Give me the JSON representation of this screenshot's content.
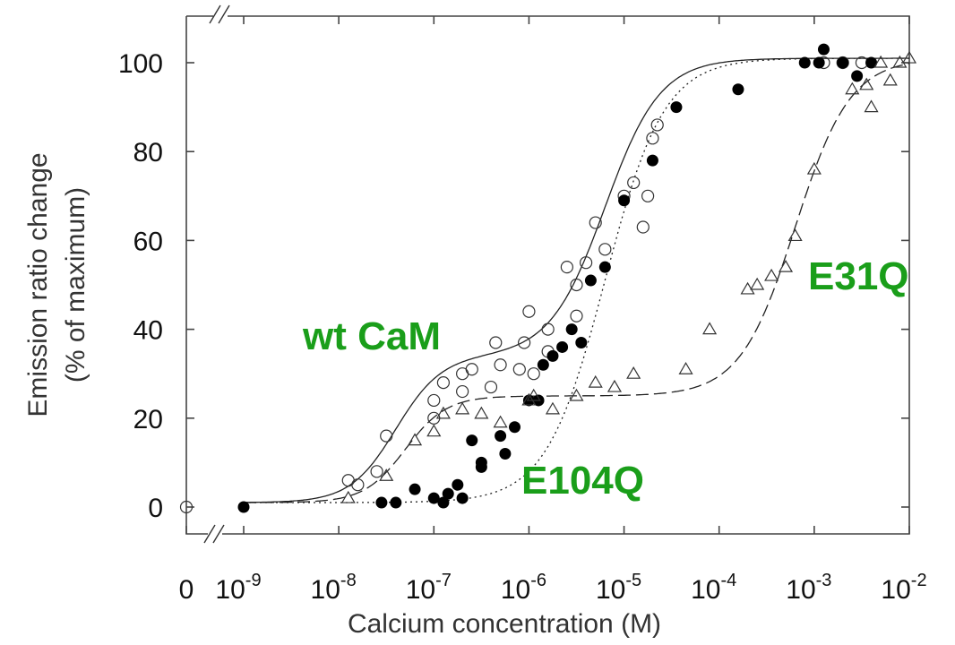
{
  "chart_data": {
    "type": "scatter",
    "title": "",
    "xlabel": "Calcium concentration (M)",
    "ylabel": "Emission ratio change",
    "ylabel_sub": "(% of maximum)",
    "x_scale": "log",
    "x_range_log10": [
      -9,
      -2
    ],
    "ylim": [
      0,
      100
    ],
    "grid": false,
    "x_zero_label": "0",
    "x_ticks": [
      {
        "base": "10",
        "exp": "-9",
        "log10": -9
      },
      {
        "base": "10",
        "exp": "-8",
        "log10": -8
      },
      {
        "base": "10",
        "exp": "-7",
        "log10": -7
      },
      {
        "base": "10",
        "exp": "-6",
        "log10": -6
      },
      {
        "base": "10",
        "exp": "-5",
        "log10": -5
      },
      {
        "base": "10",
        "exp": "-4",
        "log10": -4
      },
      {
        "base": "10",
        "exp": "-3",
        "log10": -3
      },
      {
        "base": "10",
        "exp": "-2",
        "log10": -2
      }
    ],
    "y_ticks": [
      "0",
      "20",
      "40",
      "60",
      "80",
      "100"
    ],
    "annotations": [
      {
        "text": "wt CaM",
        "color": "#1a9e1a"
      },
      {
        "text": "E104Q",
        "color": "#1a9e1a"
      },
      {
        "text": "E31Q",
        "color": "#1a9e1a"
      }
    ],
    "series": [
      {
        "marker": "open-circle",
        "points": [
          [
            -7.9,
            6
          ],
          [
            -7.8,
            5
          ],
          [
            -7.6,
            8
          ],
          [
            -7.5,
            16
          ],
          [
            -7.0,
            24
          ],
          [
            -7.0,
            20
          ],
          [
            -6.9,
            28
          ],
          [
            -6.7,
            30
          ],
          [
            -6.7,
            26
          ],
          [
            -6.6,
            31
          ],
          [
            -6.4,
            27
          ],
          [
            -6.35,
            37
          ],
          [
            -6.3,
            32
          ],
          [
            -6.1,
            31
          ],
          [
            -6.05,
            37
          ],
          [
            -6.0,
            44
          ],
          [
            -5.95,
            30
          ],
          [
            -5.8,
            35
          ],
          [
            -5.8,
            40
          ],
          [
            -5.6,
            54
          ],
          [
            -5.5,
            43
          ],
          [
            -5.5,
            50
          ],
          [
            -5.4,
            55
          ],
          [
            -5.3,
            64
          ],
          [
            -5.2,
            58
          ],
          [
            -5.0,
            70
          ],
          [
            -4.9,
            73
          ],
          [
            -4.8,
            63
          ],
          [
            -4.75,
            70
          ],
          [
            -4.7,
            83
          ],
          [
            -4.65,
            86
          ],
          [
            -2.9,
            100
          ],
          [
            -2.7,
            100
          ],
          [
            -2.5,
            100
          ]
        ]
      },
      {
        "marker": "filled-circle",
        "points": [
          [
            -9.0,
            0
          ],
          [
            -7.55,
            1
          ],
          [
            -7.4,
            1
          ],
          [
            -7.2,
            4
          ],
          [
            -7.0,
            2
          ],
          [
            -6.9,
            1
          ],
          [
            -6.85,
            3
          ],
          [
            -6.75,
            5
          ],
          [
            -6.7,
            2
          ],
          [
            -6.6,
            15
          ],
          [
            -6.5,
            10
          ],
          [
            -6.5,
            9
          ],
          [
            -6.3,
            16
          ],
          [
            -6.25,
            12
          ],
          [
            -6.15,
            18
          ],
          [
            -6.0,
            24
          ],
          [
            -5.9,
            24
          ],
          [
            -5.85,
            32
          ],
          [
            -5.75,
            34
          ],
          [
            -5.65,
            36
          ],
          [
            -5.55,
            40
          ],
          [
            -5.45,
            37
          ],
          [
            -5.35,
            51
          ],
          [
            -5.2,
            54
          ],
          [
            -5.0,
            69
          ],
          [
            -4.7,
            78
          ],
          [
            -4.45,
            90
          ],
          [
            -3.8,
            94
          ],
          [
            -3.1,
            100
          ],
          [
            -2.95,
            100
          ],
          [
            -2.9,
            103
          ],
          [
            -2.7,
            100
          ],
          [
            -2.55,
            97
          ],
          [
            -2.4,
            100
          ]
        ]
      },
      {
        "marker": "open-triangle",
        "points": [
          [
            -7.9,
            2
          ],
          [
            -7.5,
            7
          ],
          [
            -7.2,
            15
          ],
          [
            -7.0,
            17
          ],
          [
            -6.9,
            21
          ],
          [
            -6.7,
            22
          ],
          [
            -6.5,
            21
          ],
          [
            -6.3,
            19
          ],
          [
            -6.0,
            24
          ],
          [
            -5.95,
            25
          ],
          [
            -5.75,
            22
          ],
          [
            -5.5,
            25
          ],
          [
            -5.3,
            28
          ],
          [
            -5.1,
            27
          ],
          [
            -4.9,
            30
          ],
          [
            -4.35,
            31
          ],
          [
            -4.1,
            40
          ],
          [
            -3.7,
            49
          ],
          [
            -3.6,
            50
          ],
          [
            -3.45,
            52
          ],
          [
            -3.3,
            54
          ],
          [
            -3.2,
            61
          ],
          [
            -3.0,
            76
          ],
          [
            -2.6,
            94
          ],
          [
            -2.45,
            95
          ],
          [
            -2.4,
            90
          ],
          [
            -2.3,
            100
          ],
          [
            -2.2,
            96
          ],
          [
            -2.1,
            100
          ],
          [
            -2.0,
            101
          ]
        ]
      }
    ],
    "zero_points": [
      {
        "marker": "open-circle",
        "x": 0,
        "y": 0
      }
    ],
    "fit_curves": [
      {
        "style": "solid",
        "plateau1": 33,
        "mid1_log10": -7.4,
        "slope1": 1.8,
        "mid2_log10": -5.2,
        "slope2": 1.5
      },
      {
        "style": "dotted",
        "plateau1": 0,
        "mid1_log10": -6.2,
        "slope1": 1.4,
        "mid2_log10": -5.2,
        "slope2": 1.4
      },
      {
        "style": "dashed",
        "plateau1": 24,
        "mid1_log10": -7.3,
        "slope1": 2.0,
        "mid2_log10": -3.2,
        "slope2": 1.5
      }
    ]
  }
}
